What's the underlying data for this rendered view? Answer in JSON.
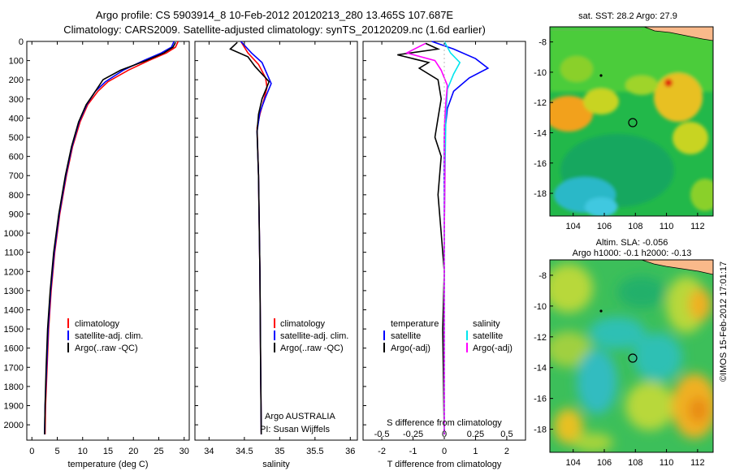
{
  "header": {
    "line1": "Argo profile: CS 5903914_8 10-Feb-2012 20120213_280 13.465S 107.687E",
    "line2": "Climatology: CARS2009. Satellite-adjusted climatology: synTS_20120209.nc (1.6d earlier)"
  },
  "side_label": "©IMOS 15-Feb-2012 17:01:17",
  "colors": {
    "clim": "#ff0000",
    "sat": "#0000ff",
    "argo": "#000000",
    "sal_sat": "#00e5ee",
    "sal_argo": "#ff00ff",
    "land": "#f9b98a"
  },
  "chart_data": [
    {
      "type": "line",
      "xlabel": "temperature (deg C)",
      "ylabel": "",
      "xlim": [
        -1,
        31
      ],
      "ylim": [
        2080,
        0
      ],
      "x_ticks": [
        0,
        5,
        10,
        15,
        20,
        25,
        30
      ],
      "y_ticks": [
        0,
        100,
        200,
        300,
        400,
        500,
        600,
        700,
        800,
        900,
        1000,
        1100,
        1200,
        1300,
        1400,
        1500,
        1600,
        1700,
        1800,
        1900,
        2000
      ],
      "legend": [
        "climatology",
        "satellite-adj. clim.",
        "Argo(..raw -QC)"
      ],
      "series": [
        {
          "name": "climatology",
          "color": "clim",
          "points": [
            [
              28.8,
              0
            ],
            [
              28.3,
              30
            ],
            [
              26.5,
              60
            ],
            [
              23,
              100
            ],
            [
              19,
              150
            ],
            [
              15,
              210
            ],
            [
              13,
              260
            ],
            [
              11,
              330
            ],
            [
              9.5,
              420
            ],
            [
              8,
              550
            ],
            [
              6.8,
              700
            ],
            [
              5.5,
              900
            ],
            [
              4.5,
              1100
            ],
            [
              3.8,
              1300
            ],
            [
              3.3,
              1500
            ],
            [
              3,
              1700
            ],
            [
              2.7,
              1900
            ],
            [
              2.6,
              2050
            ]
          ]
        },
        {
          "name": "satellite-adj. clim.",
          "color": "sat",
          "points": [
            [
              28,
              0
            ],
            [
              27.5,
              30
            ],
            [
              25.5,
              60
            ],
            [
              22,
              100
            ],
            [
              18,
              150
            ],
            [
              14.5,
              210
            ],
            [
              12.5,
              260
            ],
            [
              10.8,
              330
            ],
            [
              9.3,
              420
            ],
            [
              7.9,
              550
            ],
            [
              6.7,
              700
            ],
            [
              5.4,
              900
            ],
            [
              4.4,
              1100
            ],
            [
              3.7,
              1300
            ],
            [
              3.2,
              1500
            ],
            [
              2.9,
              1700
            ],
            [
              2.6,
              1900
            ],
            [
              2.5,
              2050
            ]
          ]
        },
        {
          "name": "Argo(..raw -QC)",
          "color": "argo",
          "points": [
            [
              28.3,
              5
            ],
            [
              27.8,
              30
            ],
            [
              26,
              60
            ],
            [
              22.5,
              100
            ],
            [
              17.5,
              150
            ],
            [
              14,
              200
            ],
            [
              12.5,
              260
            ],
            [
              10.7,
              330
            ],
            [
              9.2,
              420
            ],
            [
              7.8,
              550
            ],
            [
              6.6,
              700
            ],
            [
              5.3,
              900
            ],
            [
              4.3,
              1100
            ],
            [
              3.6,
              1300
            ],
            [
              3.1,
              1500
            ],
            [
              2.8,
              1700
            ],
            [
              2.6,
              1900
            ],
            [
              2.5,
              2050
            ]
          ]
        }
      ]
    },
    {
      "type": "line",
      "xlabel": "salinity",
      "ylabel": "",
      "xlim": [
        33.8,
        36.1
      ],
      "ylim": [
        2080,
        0
      ],
      "x_ticks": [
        34,
        34.5,
        35,
        35.5,
        36
      ],
      "legend": [
        "climatology",
        "satellite-adj. clim.",
        "Argo(..raw -QC)"
      ],
      "annotations": [
        "Argo AUSTRALIA",
        "PI: Susan Wijffels"
      ],
      "series": [
        {
          "name": "climatology",
          "color": "clim",
          "points": [
            [
              34.45,
              0
            ],
            [
              34.55,
              60
            ],
            [
              34.7,
              120
            ],
            [
              34.8,
              190
            ],
            [
              34.82,
              240
            ],
            [
              34.78,
              300
            ],
            [
              34.72,
              380
            ],
            [
              34.68,
              450
            ],
            [
              34.7,
              700
            ],
            [
              34.72,
              1200
            ],
            [
              34.73,
              1700
            ],
            [
              34.74,
              2050
            ]
          ]
        },
        {
          "name": "satellite-adj. clim.",
          "color": "sat",
          "points": [
            [
              34.45,
              0
            ],
            [
              34.6,
              60
            ],
            [
              34.75,
              110
            ],
            [
              34.88,
              220
            ],
            [
              34.8,
              290
            ],
            [
              34.72,
              370
            ],
            [
              34.68,
              470
            ],
            [
              34.7,
              700
            ],
            [
              34.72,
              1200
            ],
            [
              34.73,
              1700
            ],
            [
              34.74,
              2050
            ]
          ]
        },
        {
          "name": "Argo(..raw -QC)",
          "color": "argo",
          "points": [
            [
              34.4,
              5
            ],
            [
              34.3,
              40
            ],
            [
              34.55,
              80
            ],
            [
              34.65,
              130
            ],
            [
              34.85,
              210
            ],
            [
              34.75,
              300
            ],
            [
              34.7,
              380
            ],
            [
              34.68,
              470
            ],
            [
              34.7,
              700
            ],
            [
              34.72,
              1200
            ],
            [
              34.73,
              1700
            ],
            [
              34.74,
              2050
            ]
          ]
        }
      ]
    },
    {
      "type": "line",
      "xlabel": "T difference from climatology",
      "xlabel_top": "S difference from climatology",
      "xlim": [
        -2.6,
        2.6
      ],
      "ylim": [
        2080,
        0
      ],
      "x_ticks": [
        -2,
        -1,
        0,
        1,
        2
      ],
      "x_ticks_s": [
        "-0.5",
        "-0.25",
        "0",
        "0.25",
        "0.5"
      ],
      "legend_t": [
        "temperature",
        "satellite",
        "Argo(-adj)"
      ],
      "legend_s": [
        "salinity",
        "satellite",
        "Argo(-adj)"
      ],
      "series": [
        {
          "name": "satellite",
          "color": "sat",
          "points": [
            [
              -0.4,
              0
            ],
            [
              0.3,
              40
            ],
            [
              1,
              90
            ],
            [
              1.4,
              140
            ],
            [
              0.8,
              190
            ],
            [
              0.3,
              260
            ],
            [
              0.1,
              350
            ],
            [
              0,
              500
            ],
            [
              0,
              2050
            ]
          ]
        },
        {
          "name": "Argo(-adj)",
          "color": "argo",
          "points": [
            [
              -0.6,
              10
            ],
            [
              -0.2,
              40
            ],
            [
              -1.5,
              70
            ],
            [
              -0.5,
              110
            ],
            [
              -0.8,
              140
            ],
            [
              -0.2,
              200
            ],
            [
              -0.1,
              300
            ],
            [
              -0.2,
              400
            ],
            [
              -0.3,
              500
            ],
            [
              -0.1,
              600
            ],
            [
              -0.2,
              800
            ],
            [
              -0.1,
              1000
            ],
            [
              0,
              1200
            ],
            [
              -0.05,
              1500
            ],
            [
              0,
              2050
            ]
          ]
        },
        {
          "name": "salinity satellite",
          "color": "sal_sat",
          "points": [
            [
              0,
              0
            ],
            [
              0.2,
              60
            ],
            [
              0.5,
              110
            ],
            [
              0.3,
              170
            ],
            [
              0.1,
              250
            ],
            [
              0.05,
              400
            ],
            [
              0.02,
              700
            ],
            [
              0,
              1000
            ],
            [
              0,
              2050
            ]
          ]
        },
        {
          "name": "salinity Argo(-adj)",
          "color": "sal_argo",
          "points": [
            [
              -0.6,
              10
            ],
            [
              -1.2,
              60
            ],
            [
              -0.3,
              100
            ],
            [
              -0.1,
              150
            ],
            [
              0.1,
              230
            ],
            [
              0.05,
              320
            ],
            [
              0,
              450
            ],
            [
              0.02,
              700
            ],
            [
              0,
              1000
            ],
            [
              0,
              2050
            ]
          ]
        }
      ]
    },
    {
      "type": "heatmap",
      "title": "sat. SST: 28.2 Argo: 27.9",
      "x_ticks": [
        104,
        106,
        108,
        110,
        112
      ],
      "y_ticks": [
        -8,
        -10,
        -12,
        -14,
        -16,
        -18
      ],
      "xlim": [
        102.5,
        113
      ],
      "ylim": [
        -19.5,
        -7
      ]
    },
    {
      "type": "heatmap",
      "title": "Altim. SLA: -0.056",
      "subtitle": "Argo h1000: -0.1 h2000: -0.13",
      "x_ticks": [
        104,
        106,
        108,
        110,
        112
      ],
      "y_ticks": [
        -8,
        -10,
        -12,
        -14,
        -16,
        -18
      ],
      "xlim": [
        102.5,
        113
      ],
      "ylim": [
        -19.5,
        -7
      ]
    }
  ]
}
